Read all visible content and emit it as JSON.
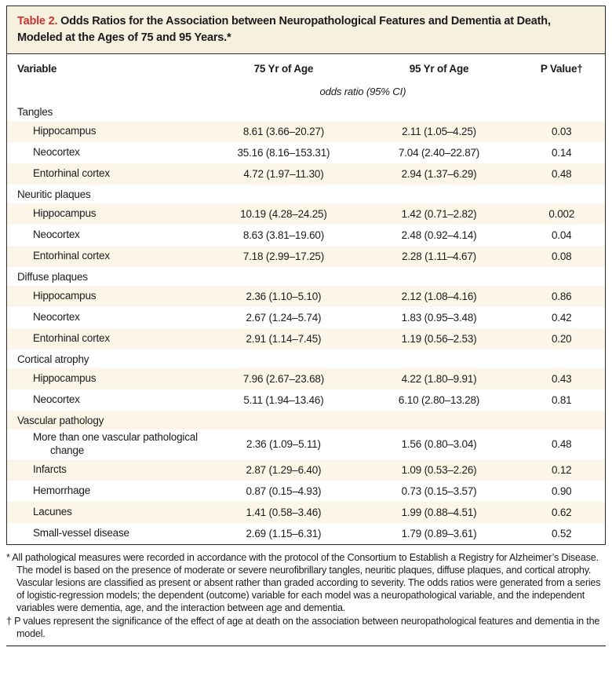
{
  "colors": {
    "title_bar_bg": "#f6f0df",
    "shaded_row_bg": "#fbf6e7",
    "title_label_red": "#c9342d",
    "border": "#2a2a2a"
  },
  "table": {
    "title_label": "Table 2.",
    "title_text": " Odds Ratios for the Association between Neuropathological Features and Dementia at Death, Modeled at the Ages of 75 and 95 Years.*",
    "columns": [
      "Variable",
      "75 Yr of Age",
      "95 Yr of Age",
      "P Value†"
    ],
    "unit_note": "odds ratio (95% CI)",
    "sections": [
      {
        "group": "Tangles",
        "rows": [
          {
            "variable": "Hippocampus",
            "or75": "8.61 (3.66–20.27)",
            "or95": "2.11 (1.05–4.25)",
            "p": "0.03"
          },
          {
            "variable": "Neocortex",
            "or75": "35.16 (8.16–153.31)",
            "or95": "7.04 (2.40–22.87)",
            "p": "0.14"
          },
          {
            "variable": "Entorhinal cortex",
            "or75": "4.72 (1.97–11.30)",
            "or95": "2.94 (1.37–6.29)",
            "p": "0.48"
          }
        ]
      },
      {
        "group": "Neuritic plaques",
        "rows": [
          {
            "variable": "Hippocampus",
            "or75": "10.19 (4.28–24.25)",
            "or95": "1.42 (0.71–2.82)",
            "p": "0.002"
          },
          {
            "variable": "Neocortex",
            "or75": "8.63 (3.81–19.60)",
            "or95": "2.48 (0.92–4.14)",
            "p": "0.04"
          },
          {
            "variable": "Entorhinal cortex",
            "or75": "7.18 (2.99–17.25)",
            "or95": "2.28 (1.11–4.67)",
            "p": "0.08"
          }
        ]
      },
      {
        "group": "Diffuse plaques",
        "rows": [
          {
            "variable": "Hippocampus",
            "or75": "2.36 (1.10–5.10)",
            "or95": "2.12 (1.08–4.16)",
            "p": "0.86"
          },
          {
            "variable": "Neocortex",
            "or75": "2.67 (1.24–5.74)",
            "or95": "1.83 (0.95–3.48)",
            "p": "0.42"
          },
          {
            "variable": "Entorhinal cortex",
            "or75": "2.91 (1.14–7.45)",
            "or95": "1.19 (0.56–2.53)",
            "p": "0.20"
          }
        ]
      },
      {
        "group": "Cortical atrophy",
        "rows": [
          {
            "variable": "Hippocampus",
            "or75": "7.96 (2.67–23.68)",
            "or95": "4.22 (1.80–9.91)",
            "p": "0.43"
          },
          {
            "variable": "Neocortex",
            "or75": "5.11 (1.94–13.46)",
            "or95": "6.10 (2.80–13.28)",
            "p": "0.81"
          }
        ]
      },
      {
        "group": "Vascular pathology",
        "rows": [
          {
            "variable": "More than one vascular pathological change",
            "or75": "2.36 (1.09–5.11)",
            "or95": "1.56 (0.80–3.04)",
            "p": "0.48"
          },
          {
            "variable": "Infarcts",
            "or75": "2.87 (1.29–6.40)",
            "or95": "1.09 (0.53–2.26)",
            "p": "0.12"
          },
          {
            "variable": "Hemorrhage",
            "or75": "0.87 (0.15–4.93)",
            "or95": "0.73 (0.15–3.57)",
            "p": "0.90"
          },
          {
            "variable": "Lacunes",
            "or75": "1.41 (0.58–3.46)",
            "or95": "1.99 (0.88–4.51)",
            "p": "0.62"
          },
          {
            "variable": "Small-vessel disease",
            "or75": "2.69 (1.15–6.31)",
            "or95": "1.79 (0.89–3.61)",
            "p": "0.52"
          }
        ]
      }
    ],
    "footnotes": [
      {
        "marker": "*",
        "text": "All pathological measures were recorded in accordance with the protocol of the Consortium to Establish a Registry for Alzheimer’s Disease. The model is based on the presence of moderate or severe neurofibrillary tangles, neuritic plaques, diffuse plaques, and cortical atrophy. Vascular lesions are classified as present or absent rather than graded according to severity. The odds ratios were generated from a series of logistic-regression models; the dependent (outcome) variable for each model was a neuropathological variable, and the independent variables were dementia, age, and the interaction between age and dementia."
      },
      {
        "marker": "†",
        "text": "P values represent the significance of the effect of age at death on the association between neuropathological features and dementia in the model."
      }
    ]
  }
}
